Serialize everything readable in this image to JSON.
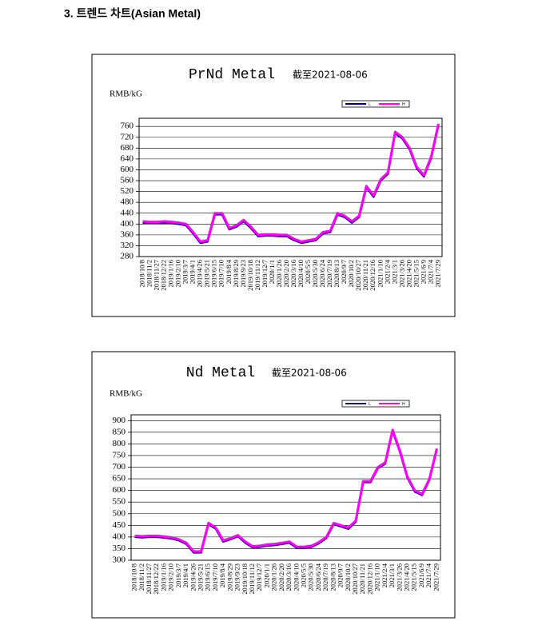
{
  "header": {
    "title": "3. 트렌드 차트(Asian Metal)"
  },
  "chart_data": [
    {
      "type": "line",
      "title": "PrNd Metal",
      "subtitle": "截至2021-08-06",
      "y_label": "RMB/kG",
      "categories": [
        "2018/10/8",
        "2018/11/2",
        "2018/11/27",
        "2018/12/22",
        "2019/1/16",
        "2019/2/10",
        "2019/3/7",
        "2019/4/1",
        "2019/4/26",
        "2019/5/21",
        "2019/6/15",
        "2019/7/10",
        "2019/8/4",
        "2019/8/29",
        "2019/9/23",
        "2019/10/18",
        "2019/11/12",
        "2019/12/7",
        "2020/1/1",
        "2020/1/26",
        "2020/2/20",
        "2020/3/16",
        "2020/4/10",
        "2020/5/5",
        "2020/5/30",
        "2020/6/24",
        "2020/7/19",
        "2020/8/13",
        "2020/9/7",
        "2020/10/2",
        "2020/10/27",
        "2020/11/21",
        "2020/12/16",
        "2021/1/10",
        "2021/2/4",
        "2021/3/1",
        "2021/3/26",
        "2021/4/20",
        "2021/5/15",
        "2021/6/9",
        "2021/7/4",
        "2021/7/29"
      ],
      "series": [
        {
          "name": "L",
          "color": "#000080",
          "values": [
            405,
            403,
            403,
            405,
            403,
            400,
            395,
            365,
            330,
            335,
            435,
            435,
            380,
            390,
            410,
            385,
            355,
            357,
            357,
            355,
            355,
            340,
            330,
            335,
            340,
            365,
            370,
            435,
            425,
            405,
            425,
            535,
            500,
            560,
            585,
            735,
            715,
            675,
            605,
            575,
            645,
            765
          ]
        },
        {
          "name": "H",
          "color": "#ff00ff",
          "values": [
            410,
            408,
            408,
            410,
            408,
            405,
            400,
            370,
            335,
            340,
            440,
            440,
            385,
            395,
            415,
            390,
            360,
            362,
            362,
            360,
            360,
            345,
            335,
            340,
            345,
            370,
            375,
            440,
            430,
            410,
            430,
            540,
            505,
            565,
            590,
            740,
            720,
            680,
            610,
            580,
            650,
            770
          ]
        }
      ],
      "ylim": [
        280,
        790
      ],
      "yticks": [
        280,
        320,
        360,
        400,
        440,
        480,
        520,
        560,
        600,
        640,
        680,
        720,
        760
      ],
      "grid": true
    },
    {
      "type": "line",
      "title": "Nd Metal",
      "subtitle": "截至2021-08-06",
      "y_label": "RMB/kG",
      "categories": [
        "2018/10/8",
        "2018/11/2",
        "2018/11/27",
        "2018/12/22",
        "2019/1/16",
        "2019/2/10",
        "2019/3/7",
        "2019/4/1",
        "2019/4/26",
        "2019/5/21",
        "2019/6/15",
        "2019/7/10",
        "2019/8/4",
        "2019/8/29",
        "2019/9/23",
        "2019/10/18",
        "2019/11/12",
        "2019/12/7",
        "2020/1/1",
        "2020/1/26",
        "2020/2/20",
        "2020/3/16",
        "2020/4/10",
        "2020/5/5",
        "2020/5/30",
        "2020/6/24",
        "2020/7/19",
        "2020/8/13",
        "2020/9/7",
        "2020/10/2",
        "2020/10/27",
        "2020/11/21",
        "2020/12/16",
        "2021/1/10",
        "2021/2/4",
        "2021/3/1",
        "2021/3/26",
        "2021/4/20",
        "2021/5/15",
        "2021/6/9",
        "2021/7/4",
        "2021/7/29"
      ],
      "series": [
        {
          "name": "L",
          "color": "#000080",
          "values": [
            400,
            398,
            400,
            400,
            397,
            393,
            385,
            370,
            333,
            333,
            455,
            435,
            380,
            390,
            403,
            375,
            355,
            357,
            363,
            365,
            370,
            375,
            353,
            353,
            357,
            373,
            395,
            455,
            445,
            435,
            465,
            635,
            635,
            695,
            715,
            855,
            765,
            655,
            595,
            580,
            645,
            775
          ]
        },
        {
          "name": "H",
          "color": "#ff00ff",
          "values": [
            405,
            403,
            405,
            405,
            402,
            398,
            390,
            375,
            338,
            338,
            460,
            440,
            385,
            395,
            408,
            380,
            360,
            362,
            368,
            370,
            375,
            380,
            358,
            358,
            362,
            378,
            400,
            460,
            450,
            440,
            470,
            640,
            640,
            700,
            720,
            860,
            770,
            660,
            600,
            585,
            650,
            780
          ]
        }
      ],
      "ylim": [
        300,
        925
      ],
      "yticks": [
        300,
        350,
        400,
        450,
        500,
        550,
        600,
        650,
        700,
        750,
        800,
        850,
        900
      ],
      "grid": true
    }
  ]
}
